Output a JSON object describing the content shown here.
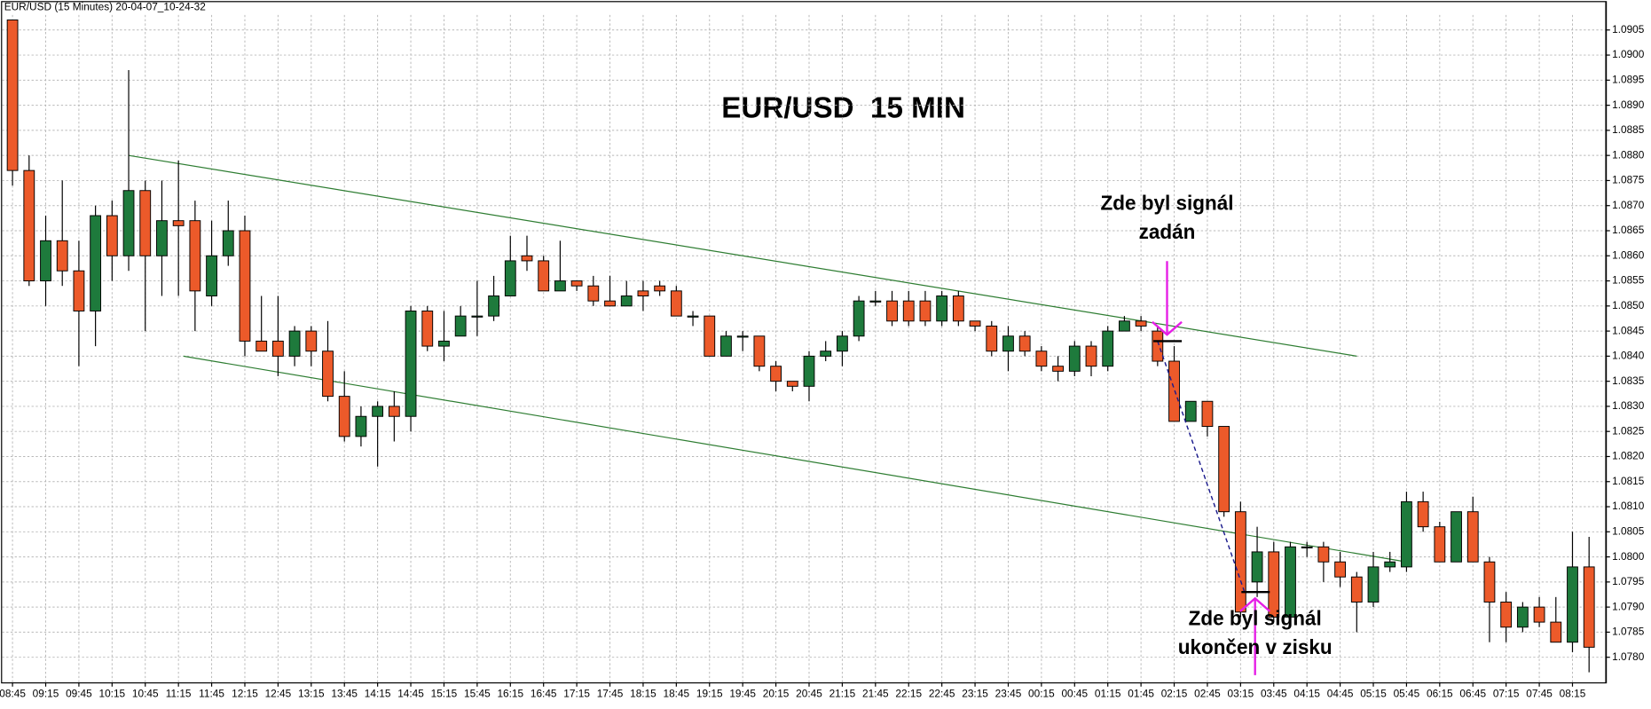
{
  "window_title": "EUR/USD (15 Minutes) 20-04-07_10-24-32",
  "chart_data": {
    "type": "candlestick",
    "title": "EUR/USD  15 MIN",
    "categories": [
      "08:45",
      null,
      "09:15",
      null,
      "09:45",
      null,
      "10:15",
      null,
      "10:45",
      null,
      "11:15",
      null,
      "11:45",
      null,
      "12:15",
      null,
      "12:45",
      null,
      "13:15",
      null,
      "13:45",
      null,
      "14:15",
      null,
      "14:45",
      null,
      "15:15",
      null,
      "15:45",
      null,
      "16:15",
      null,
      "16:45",
      null,
      "17:15",
      null,
      "17:45",
      null,
      "18:15",
      null,
      "18:45",
      null,
      "19:15",
      null,
      "19:45",
      null,
      "20:15",
      null,
      "20:45",
      null,
      "21:15",
      null,
      "21:45",
      null,
      "22:15",
      null,
      "22:45",
      null,
      "23:15",
      null,
      "23:45",
      null,
      "00:15",
      null,
      "00:45",
      null,
      "01:15",
      null,
      "01:45",
      null,
      "02:15",
      null,
      "02:45",
      null,
      "03:15",
      null,
      "03:45",
      null,
      "04:15",
      null,
      "04:45",
      null,
      "05:15",
      null,
      "05:45",
      null,
      "06:15",
      null,
      "06:45",
      null,
      "07:15",
      null,
      "07:45",
      null,
      "08:15",
      null
    ],
    "open": [
      1.0907,
      1.0877,
      1.0855,
      1.0863,
      1.0857,
      1.0849,
      1.0868,
      1.086,
      1.0873,
      1.086,
      1.0867,
      1.0867,
      1.0852,
      1.086,
      1.0865,
      1.0843,
      1.0843,
      1.084,
      1.0845,
      1.0841,
      1.0832,
      1.0824,
      1.0828,
      1.083,
      1.0828,
      1.0849,
      1.0842,
      1.0844,
      1.0848,
      1.0848,
      1.0852,
      1.086,
      1.0859,
      1.0853,
      1.0855,
      1.0854,
      1.0851,
      1.085,
      1.0853,
      1.0854,
      1.0853,
      1.0848,
      1.0848,
      1.084,
      1.0844,
      1.0844,
      1.0838,
      1.0835,
      1.0834,
      1.084,
      1.0841,
      1.0844,
      1.0851,
      1.0851,
      1.0851,
      1.0851,
      1.0847,
      1.0852,
      1.0847,
      1.0846,
      1.0841,
      1.0844,
      1.0841,
      1.0838,
      1.0837,
      1.0842,
      1.0838,
      1.0845,
      1.0847,
      1.0845,
      1.0839,
      1.0827,
      1.0831,
      1.0826,
      1.0809,
      1.0795,
      1.0801,
      1.0788,
      1.0802,
      1.0802,
      1.0799,
      1.0796,
      1.0791,
      1.0798,
      1.0798,
      1.0811,
      1.0806,
      1.0799,
      1.0809,
      1.0799,
      1.0791,
      1.0786,
      1.079,
      1.0787,
      1.0783,
      1.0798
    ],
    "high": [
      1.0907,
      1.088,
      1.0868,
      1.0875,
      1.0863,
      1.087,
      1.0871,
      1.0897,
      1.0875,
      1.0875,
      1.0879,
      1.0871,
      1.0867,
      1.0871,
      1.0868,
      1.0852,
      1.0852,
      1.0846,
      1.0846,
      1.0847,
      1.0837,
      1.083,
      1.0831,
      1.0833,
      1.085,
      1.085,
      1.0849,
      1.085,
      1.0855,
      1.0856,
      1.0864,
      1.0864,
      1.086,
      1.0863,
      1.0855,
      1.0856,
      1.0856,
      1.0855,
      1.0855,
      1.0855,
      1.0854,
      1.0849,
      1.0848,
      1.0845,
      1.0845,
      1.0844,
      1.0839,
      1.0835,
      1.0841,
      1.0843,
      1.0845,
      1.0852,
      1.0853,
      1.0853,
      1.0853,
      1.0853,
      1.0853,
      1.0853,
      1.0847,
      1.0847,
      1.0846,
      1.0845,
      1.0842,
      1.084,
      1.0843,
      1.0843,
      1.0846,
      1.0848,
      1.0848,
      1.0846,
      1.0842,
      1.0831,
      1.0831,
      1.0826,
      1.0811,
      1.0806,
      1.0803,
      1.0803,
      1.0803,
      1.0803,
      1.0801,
      1.0797,
      1.0801,
      1.0801,
      1.0813,
      1.0813,
      1.0807,
      1.0809,
      1.0812,
      1.08,
      1.0793,
      1.0791,
      1.0792,
      1.0792,
      1.0805,
      1.0804
    ],
    "low": [
      1.0874,
      1.0854,
      1.085,
      1.0854,
      1.0838,
      1.0842,
      1.0855,
      1.0857,
      1.0845,
      1.0852,
      1.0852,
      1.0845,
      1.085,
      1.0858,
      1.084,
      1.0841,
      1.0836,
      1.0838,
      1.0838,
      1.0831,
      1.0823,
      1.0822,
      1.0818,
      1.0823,
      1.0825,
      1.0841,
      1.0839,
      1.0844,
      1.0844,
      1.0847,
      1.0852,
      1.0857,
      1.0853,
      1.0853,
      1.0853,
      1.085,
      1.085,
      1.085,
      1.0849,
      1.0852,
      1.0848,
      1.0846,
      1.084,
      1.084,
      1.0841,
      1.0837,
      1.0833,
      1.0833,
      1.0831,
      1.0839,
      1.0838,
      1.0843,
      1.085,
      1.0846,
      1.0846,
      1.0846,
      1.0846,
      1.0846,
      1.0845,
      1.084,
      1.0837,
      1.084,
      1.0837,
      1.0835,
      1.0836,
      1.0836,
      1.0837,
      1.0845,
      1.0845,
      1.0838,
      1.0827,
      1.0827,
      1.0824,
      1.0808,
      1.0788,
      1.0792,
      1.0787,
      1.0787,
      1.08,
      1.0795,
      1.0794,
      1.0785,
      1.079,
      1.0797,
      1.0797,
      1.0805,
      1.0799,
      1.0799,
      1.0799,
      1.0783,
      1.0783,
      1.0785,
      1.0786,
      1.0783,
      1.0781,
      1.0777
    ],
    "close": [
      1.0877,
      1.0855,
      1.0863,
      1.0857,
      1.0849,
      1.0868,
      1.086,
      1.0873,
      1.086,
      1.0867,
      1.0866,
      1.0853,
      1.086,
      1.0865,
      1.0843,
      1.0841,
      1.084,
      1.0845,
      1.0841,
      1.0832,
      1.0824,
      1.0828,
      1.083,
      1.0828,
      1.0849,
      1.0842,
      1.0843,
      1.0848,
      1.0848,
      1.0852,
      1.0859,
      1.0859,
      1.0853,
      1.0855,
      1.0854,
      1.0851,
      1.085,
      1.0852,
      1.0852,
      1.0853,
      1.0848,
      1.0848,
      1.084,
      1.0844,
      1.0844,
      1.0838,
      1.0835,
      1.0834,
      1.084,
      1.0841,
      1.0844,
      1.0851,
      1.0851,
      1.0847,
      1.0847,
      1.0847,
      1.0852,
      1.0847,
      1.0846,
      1.0841,
      1.0844,
      1.0841,
      1.0838,
      1.0837,
      1.0842,
      1.0838,
      1.0845,
      1.0847,
      1.0846,
      1.0839,
      1.0827,
      1.0831,
      1.0826,
      1.0809,
      1.0789,
      1.0801,
      1.0788,
      1.0802,
      1.0802,
      1.0799,
      1.0796,
      1.0791,
      1.0798,
      1.0799,
      1.0811,
      1.0806,
      1.0799,
      1.0809,
      1.0799,
      1.0791,
      1.0786,
      1.079,
      1.0787,
      1.0783,
      1.0798,
      1.0782
    ],
    "up_color": "#1e7a3c",
    "down_color": "#ec5a2a",
    "ylim": [
      1.0775,
      1.0908
    ],
    "yticks": [
      {
        "value": 1.078,
        "label": "1.0780"
      },
      1.0785,
      {
        "value": 1.079,
        "label": "1.0790"
      },
      1.0795,
      {
        "value": 1.08,
        "label": "1.0800"
      },
      1.0805,
      {
        "value": 1.081,
        "label": "1.0810"
      },
      1.0815,
      {
        "value": 1.082,
        "label": "1.0820"
      },
      1.0825,
      {
        "value": 1.083,
        "label": "1.0830"
      },
      1.0835,
      {
        "value": 1.084,
        "label": "1.0840"
      },
      1.0845,
      {
        "value": 1.085,
        "label": "1.0850"
      },
      1.0855,
      {
        "value": 1.086,
        "label": "1.0860"
      },
      1.0865,
      {
        "value": 1.087,
        "label": "1.0870"
      },
      1.0875,
      {
        "value": 1.088,
        "label": "1.0880"
      },
      1.0885,
      {
        "value": 1.089,
        "label": "1.0890"
      },
      1.0895,
      {
        "value": 1.09,
        "label": "1.0900"
      },
      1.0905
    ],
    "grid": true,
    "trendlines": [
      {
        "color": "#2e7d32",
        "x": [
          7,
          81
        ],
        "y": [
          1.088,
          1.084
        ]
      },
      {
        "color": "#2e7d32",
        "x": [
          10.3,
          84
        ],
        "y": [
          1.084,
          1.0799
        ]
      }
    ],
    "signals": [
      {
        "index": 69,
        "price": 1.0843,
        "text": [
          "Zde byl signál",
          "zadán"
        ]
      },
      {
        "index": 75,
        "price": 1.0793,
        "text": [
          "Zde byl signál",
          "ukončen v zisku"
        ]
      }
    ],
    "signal_color": "#e61ee6"
  }
}
